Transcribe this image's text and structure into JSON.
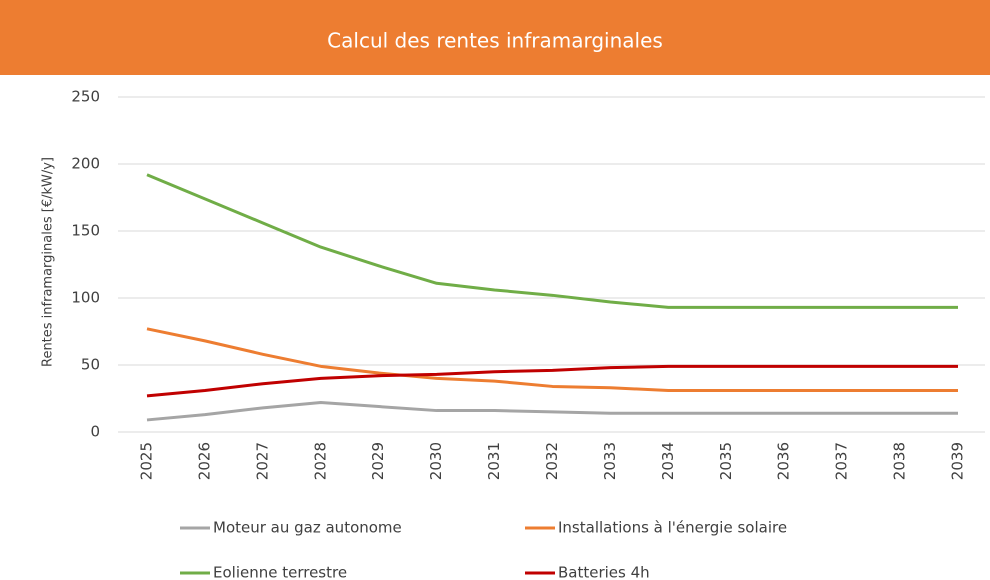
{
  "chart_data": {
    "type": "line",
    "title": "Calcul des rentes inframarginales",
    "y_label": "Rentes inframarginales [€/kW/y]",
    "categories": [
      "2025",
      "2026",
      "2027",
      "2028",
      "2029",
      "2030",
      "2031",
      "2032",
      "2033",
      "2034",
      "2035",
      "2036",
      "2037",
      "2038",
      "2039"
    ],
    "series": [
      {
        "name": "Moteur au gaz autonome",
        "color": "#a5a5a5",
        "values": [
          9,
          13,
          18,
          22,
          19,
          16,
          16,
          15,
          14,
          14,
          14,
          14,
          14,
          14,
          14
        ]
      },
      {
        "name": "Installations à l'énergie solaire",
        "color": "#ed7d31",
        "values": [
          77,
          68,
          58,
          49,
          44,
          40,
          38,
          34,
          33,
          31,
          31,
          31,
          31,
          31,
          31
        ]
      },
      {
        "name": "Eolienne terrestre",
        "color": "#70ad47",
        "values": [
          192,
          174,
          156,
          138,
          124,
          111,
          106,
          102,
          97,
          93,
          93,
          93,
          93,
          93,
          93
        ]
      },
      {
        "name": "Batteries 4h",
        "color": "#c00000",
        "values": [
          27,
          31,
          36,
          40,
          42,
          43,
          45,
          46,
          48,
          49,
          49,
          49,
          49,
          49,
          49
        ]
      }
    ],
    "ylim": [
      0,
      250
    ],
    "yticks": [
      0,
      50,
      100,
      150,
      200,
      250
    ],
    "grid": true,
    "title_bg": "#ed7d31"
  }
}
